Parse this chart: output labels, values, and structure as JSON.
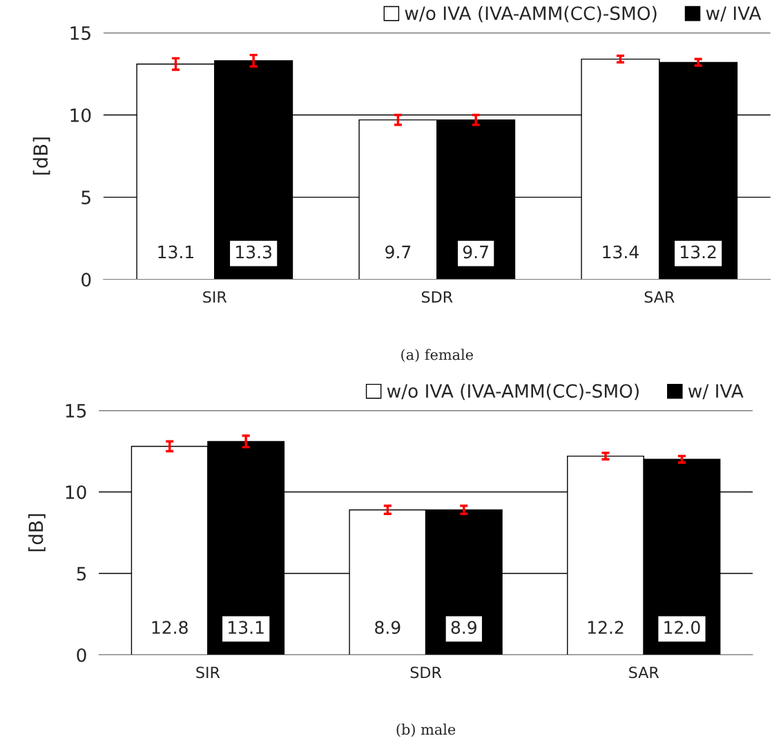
{
  "chart_data": [
    {
      "type": "bar",
      "ylabel": "[dB]",
      "categories": [
        "SIR",
        "SDR",
        "SAR"
      ],
      "ylim": [
        0,
        15
      ],
      "yticks": [
        0,
        5,
        10,
        15
      ],
      "grid": "y",
      "legend": "top right",
      "series": [
        {
          "name": "w/o IVA (IVA-AMM(CC)-SMO)",
          "color": "#ffffff",
          "values": [
            13.1,
            9.7,
            13.4
          ],
          "errors": [
            0.35,
            0.3,
            0.2
          ],
          "value_labels": [
            "13.1",
            "9.7",
            "13.4"
          ]
        },
        {
          "name": "w/ IVA",
          "color": "#000000",
          "values": [
            13.3,
            9.7,
            13.2
          ],
          "errors": [
            0.35,
            0.3,
            0.2
          ],
          "value_labels": [
            "13.3",
            "9.7",
            "13.2"
          ]
        }
      ],
      "annotations": [
        "(a) female"
      ]
    },
    {
      "type": "bar",
      "ylabel": "[dB]",
      "categories": [
        "SIR",
        "SDR",
        "SAR"
      ],
      "ylim": [
        0,
        15
      ],
      "yticks": [
        0,
        5,
        10,
        15
      ],
      "grid": "y",
      "legend": "top right",
      "series": [
        {
          "name": "w/o IVA (IVA-AMM(CC)-SMO)",
          "color": "#ffffff",
          "values": [
            12.8,
            8.9,
            12.2
          ],
          "errors": [
            0.3,
            0.25,
            0.2
          ],
          "value_labels": [
            "12.8",
            "8.9",
            "12.2"
          ]
        },
        {
          "name": "w/ IVA",
          "color": "#000000",
          "values": [
            13.1,
            8.9,
            12.0
          ],
          "errors": [
            0.35,
            0.25,
            0.2
          ],
          "value_labels": [
            "13.1",
            "8.9",
            "12.0"
          ]
        }
      ],
      "annotations": [
        "(b) male"
      ]
    }
  ]
}
